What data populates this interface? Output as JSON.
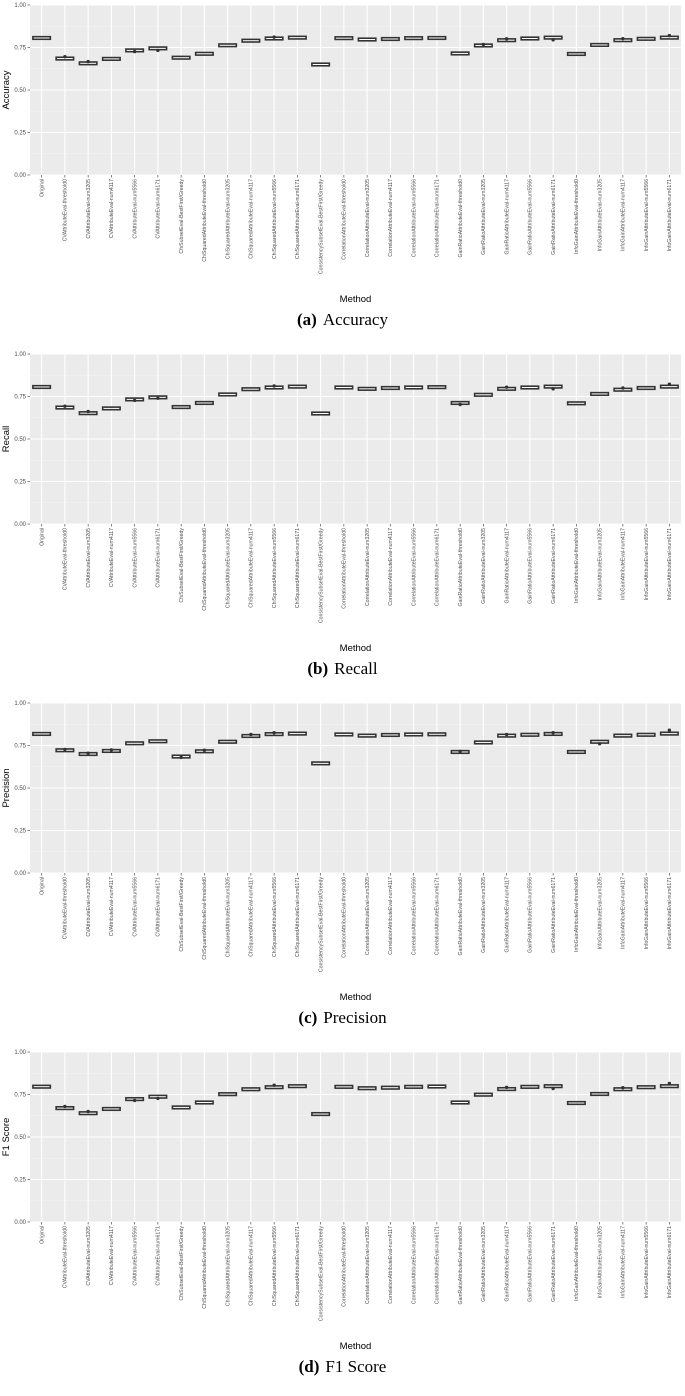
{
  "chart_data": [
    {
      "type": "box",
      "caption_letter": "(a)",
      "caption_text": "Accuracy",
      "ylabel": "Accuracy",
      "xlabel": "Method",
      "ylim": [
        0,
        1
      ],
      "yticks": [
        "0.00",
        "0.25",
        "0.50",
        "0.75",
        "1.00"
      ],
      "grid": true,
      "categories": [
        "Original",
        "CVAttributeEval-threshold0",
        "CVAttributeEval-num3205",
        "CVAttributeEval-num4117",
        "CVAttributeEval-num5566",
        "CVAttributeEval-num6171",
        "CfsSubsetEval-BestFirst/Greedy",
        "ChiSquaredAttributeEval-threshold0",
        "ChiSquaredAttributeEval-num3205",
        "ChiSquaredAttributeEval-num4117",
        "ChiSquaredAttributeEval-num5566",
        "ChiSquaredAttributeEval-num6171",
        "ConsistencySubsetEval-BestFirst/Greedy",
        "CorrelationAttributeEval-threshold0",
        "CorrelationAttributeEval-num3205",
        "CorrelationAttributeEval-num4117",
        "CorrelationAttributeEval-num5566",
        "CorrelationAttributeEval-num6171",
        "GainRatioAttributeEval-threshold0",
        "GainRatioAttributeEval-num3205",
        "GainRatioAttributeEval-num4117",
        "GainRatioAttributeEval-num5566",
        "GainRatioAttributeEval-num6171",
        "InfoGainAttributeEval-threshold0",
        "InfoGainAttributeEval-num3205",
        "InfoGainAttributeEval-num4117",
        "InfoGainAttributeEval-num5566",
        "InfoGainAttributeEval-num6171"
      ],
      "values": [
        0.806,
        0.685,
        0.657,
        0.683,
        0.733,
        0.745,
        0.69,
        0.713,
        0.763,
        0.79,
        0.803,
        0.808,
        0.65,
        0.805,
        0.797,
        0.8,
        0.805,
        0.806,
        0.715,
        0.762,
        0.793,
        0.803,
        0.808,
        0.712,
        0.765,
        0.793,
        0.801,
        0.808
      ],
      "outliers": [
        [
          1,
          0.696
        ],
        [
          2,
          0.667
        ],
        [
          4,
          0.726
        ],
        [
          5,
          0.733
        ],
        [
          10,
          0.811
        ],
        [
          19,
          0.768
        ],
        [
          20,
          0.801
        ],
        [
          22,
          0.795
        ],
        [
          25,
          0.802
        ],
        [
          27,
          0.82
        ]
      ]
    },
    {
      "type": "box",
      "caption_letter": "(b)",
      "caption_text": "Recall",
      "ylabel": "Recall",
      "xlabel": "Method",
      "ylim": [
        0,
        1
      ],
      "yticks": [
        "0.00",
        "0.25",
        "0.50",
        "0.75",
        "1.00"
      ],
      "grid": true,
      "categories": [
        "Original",
        "CVAttributeEval-threshold0",
        "CVAttributeEval-num3205",
        "CVAttributeEval-num4117",
        "CVAttributeEval-num5566",
        "CVAttributeEval-num6171",
        "CfsSubsetEval-BestFirst/Greedy",
        "ChiSquaredAttributeEval-threshold0",
        "ChiSquaredAttributeEval-num3205",
        "ChiSquaredAttributeEval-num4117",
        "ChiSquaredAttributeEval-num5566",
        "ChiSquaredAttributeEval-num6171",
        "ConsistencySubsetEval-BestFirst/Greedy",
        "CorrelationAttributeEval-threshold0",
        "CorrelationAttributeEval-num3205",
        "CorrelationAttributeEval-num4117",
        "CorrelationAttributeEval-num5566",
        "CorrelationAttributeEval-num6171",
        "GainRatioAttributeEval-threshold0",
        "GainRatioAttributeEval-num3205",
        "GainRatioAttributeEval-num4117",
        "GainRatioAttributeEval-num5566",
        "GainRatioAttributeEval-num6171",
        "InfoGainAttributeEval-threshold0",
        "InfoGainAttributeEval-num3205",
        "InfoGainAttributeEval-num4117",
        "InfoGainAttributeEval-num5566",
        "InfoGainAttributeEval-num6171"
      ],
      "values": [
        0.806,
        0.685,
        0.652,
        0.68,
        0.733,
        0.745,
        0.688,
        0.712,
        0.762,
        0.793,
        0.803,
        0.808,
        0.65,
        0.803,
        0.795,
        0.8,
        0.803,
        0.805,
        0.712,
        0.76,
        0.795,
        0.803,
        0.808,
        0.71,
        0.765,
        0.79,
        0.8,
        0.808
      ],
      "outliers": [
        [
          1,
          0.693
        ],
        [
          2,
          0.662
        ],
        [
          4,
          0.727
        ],
        [
          5,
          0.74
        ],
        [
          10,
          0.812
        ],
        [
          18,
          0.703
        ],
        [
          20,
          0.805
        ],
        [
          22,
          0.795
        ],
        [
          25,
          0.8
        ],
        [
          27,
          0.822
        ]
      ]
    },
    {
      "type": "box",
      "caption_letter": "(c)",
      "caption_text": "Precision",
      "ylabel": "Precision",
      "xlabel": "Method",
      "ylim": [
        0,
        1
      ],
      "yticks": [
        "0.00",
        "0.25",
        "0.50",
        "0.75",
        "1.00"
      ],
      "grid": true,
      "categories": [
        "Original",
        "CVAttributeEval-threshold0",
        "CVAttributeEval-num3205",
        "CVAttributeEval-num4117",
        "CVAttributeEval-num5566",
        "CVAttributeEval-num6171",
        "CfsSubsetEval-BestFirst/Greedy",
        "ChiSquaredAttributeEval-threshold0",
        "ChiSquaredAttributeEval-num3205",
        "ChiSquaredAttributeEval-num4117",
        "ChiSquaredAttributeEval-num5566",
        "ChiSquaredAttributeEval-num6171",
        "ConsistencySubsetEval-BestFirst/Greedy",
        "CorrelationAttributeEval-threshold0",
        "CorrelationAttributeEval-num3205",
        "CorrelationAttributeEval-num4117",
        "CorrelationAttributeEval-num5566",
        "CorrelationAttributeEval-num6171",
        "GainRatioAttributeEval-threshold0",
        "GainRatioAttributeEval-num3205",
        "GainRatioAttributeEval-num4117",
        "GainRatioAttributeEval-num5566",
        "GainRatioAttributeEval-num6171",
        "InfoGainAttributeEval-threshold0",
        "InfoGainAttributeEval-num3205",
        "InfoGainAttributeEval-num4117",
        "InfoGainAttributeEval-num5566",
        "InfoGainAttributeEval-num6171"
      ],
      "values": [
        0.818,
        0.722,
        0.7,
        0.718,
        0.763,
        0.775,
        0.685,
        0.716,
        0.772,
        0.806,
        0.817,
        0.82,
        0.645,
        0.815,
        0.808,
        0.812,
        0.815,
        0.816,
        0.712,
        0.768,
        0.808,
        0.813,
        0.818,
        0.712,
        0.772,
        0.808,
        0.813,
        0.82
      ],
      "outliers": [
        [
          1,
          0.727
        ],
        [
          2,
          0.705
        ],
        [
          3,
          0.724
        ],
        [
          6,
          0.68
        ],
        [
          7,
          0.722
        ],
        [
          9,
          0.815
        ],
        [
          10,
          0.825
        ],
        [
          18,
          0.716
        ],
        [
          20,
          0.815
        ],
        [
          22,
          0.825
        ],
        [
          24,
          0.76
        ],
        [
          27,
          0.84
        ]
      ]
    },
    {
      "type": "box",
      "caption_letter": "(d)",
      "caption_text": "F1 Score",
      "ylabel": "F1 Score",
      "xlabel": "Method",
      "ylim": [
        0,
        1
      ],
      "yticks": [
        "0.00",
        "0.25",
        "0.50",
        "0.75",
        "1.00"
      ],
      "grid": true,
      "categories": [
        "Original",
        "CVAttributeEval-threshold0",
        "CVAttributeEval-num3205",
        "CVAttributeEval-num4117",
        "CVAttributeEval-num5566",
        "CVAttributeEval-num6171",
        "CfsSubsetEval-BestFirst/Greedy",
        "ChiSquaredAttributeEval-threshold0",
        "ChiSquaredAttributeEval-num3205",
        "ChiSquaredAttributeEval-num4117",
        "ChiSquaredAttributeEval-num5566",
        "ChiSquaredAttributeEval-num6171",
        "ConsistencySubsetEval-BestFirst/Greedy",
        "CorrelationAttributeEval-threshold0",
        "CorrelationAttributeEval-num3205",
        "CorrelationAttributeEval-num4117",
        "CorrelationAttributeEval-num5566",
        "CorrelationAttributeEval-num6171",
        "GainRatioAttributeEval-threshold0",
        "GainRatioAttributeEval-num3205",
        "GainRatioAttributeEval-num4117",
        "GainRatioAttributeEval-num5566",
        "GainRatioAttributeEval-num6171",
        "InfoGainAttributeEval-threshold0",
        "InfoGainAttributeEval-num3205",
        "InfoGainAttributeEval-num4117",
        "InfoGainAttributeEval-num5566",
        "InfoGainAttributeEval-num6171"
      ],
      "values": [
        0.796,
        0.67,
        0.64,
        0.665,
        0.723,
        0.737,
        0.674,
        0.703,
        0.752,
        0.781,
        0.793,
        0.799,
        0.635,
        0.795,
        0.787,
        0.79,
        0.795,
        0.797,
        0.703,
        0.749,
        0.782,
        0.795,
        0.799,
        0.7,
        0.753,
        0.781,
        0.793,
        0.799
      ],
      "outliers": [
        [
          1,
          0.68
        ],
        [
          2,
          0.65
        ],
        [
          4,
          0.715
        ],
        [
          5,
          0.727
        ],
        [
          10,
          0.805
        ],
        [
          20,
          0.792
        ],
        [
          22,
          0.785
        ],
        [
          25,
          0.79
        ],
        [
          27,
          0.815
        ]
      ]
    }
  ]
}
